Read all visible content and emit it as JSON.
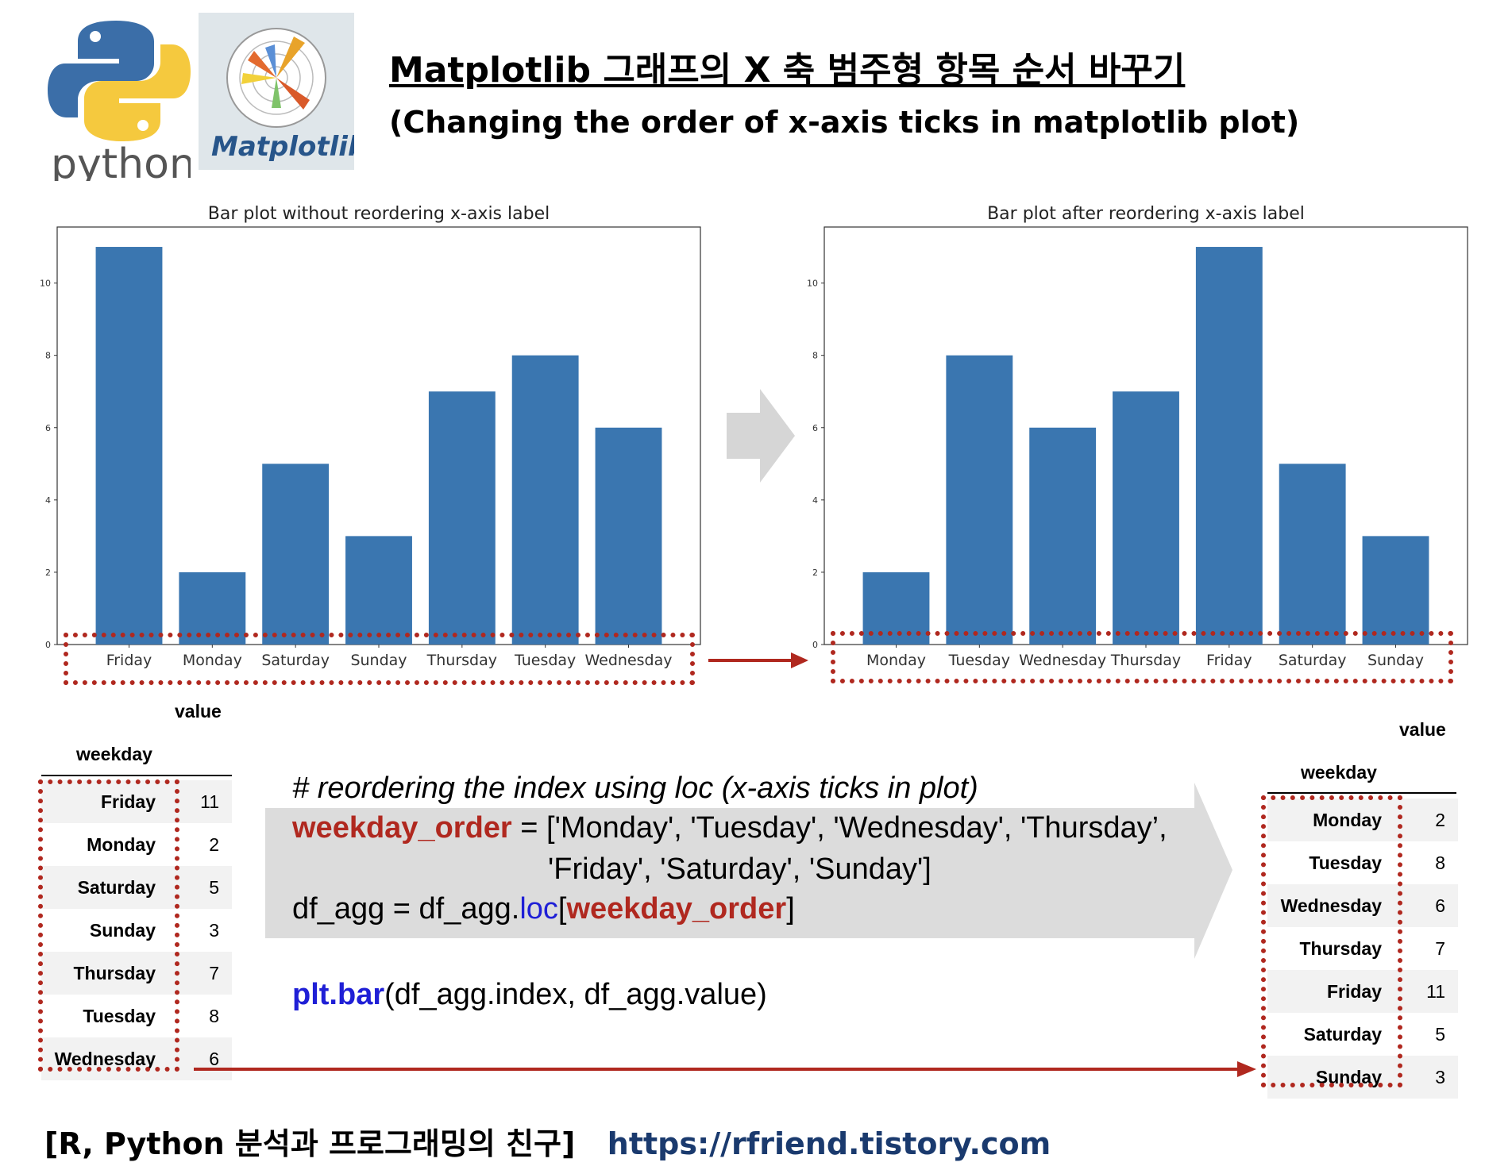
{
  "header": {
    "python_logo_text": "python",
    "mpl_logo_text": "Matplotlib",
    "title": "Matplotlib 그래프의 X 축 범주형 항목 순서 바꾸기",
    "subtitle": "(Changing the order of x-axis ticks in matplotlib plot)"
  },
  "chart_data": [
    {
      "type": "bar",
      "title": "Bar plot without reordering x-axis label",
      "categories": [
        "Friday",
        "Monday",
        "Saturday",
        "Sunday",
        "Thursday",
        "Tuesday",
        "Wednesday"
      ],
      "values": [
        11,
        2,
        5,
        3,
        7,
        8,
        6
      ],
      "ylim": [
        0,
        11.55
      ],
      "yticks": [
        0,
        2,
        4,
        6,
        8,
        10
      ],
      "color": "#3a76b0"
    },
    {
      "type": "bar",
      "title": "Bar plot after reordering x-axis label",
      "categories": [
        "Monday",
        "Tuesday",
        "Wednesday",
        "Thursday",
        "Friday",
        "Saturday",
        "Sunday"
      ],
      "values": [
        2,
        8,
        6,
        7,
        11,
        5,
        3
      ],
      "ylim": [
        0,
        11.55
      ],
      "yticks": [
        0,
        2,
        4,
        6,
        8,
        10
      ],
      "color": "#3a76b0"
    }
  ],
  "left_table": {
    "column": "value",
    "index_name": "weekday",
    "rows": [
      {
        "weekday": "Friday",
        "value": "11"
      },
      {
        "weekday": "Monday",
        "value": "2"
      },
      {
        "weekday": "Saturday",
        "value": "5"
      },
      {
        "weekday": "Sunday",
        "value": "3"
      },
      {
        "weekday": "Thursday",
        "value": "7"
      },
      {
        "weekday": "Tuesday",
        "value": "8"
      },
      {
        "weekday": "Wednesday",
        "value": "6"
      }
    ]
  },
  "right_table": {
    "column": "value",
    "index_name": "weekday",
    "rows": [
      {
        "weekday": "Monday",
        "value": "2"
      },
      {
        "weekday": "Tuesday",
        "value": "8"
      },
      {
        "weekday": "Wednesday",
        "value": "6"
      },
      {
        "weekday": "Thursday",
        "value": "7"
      },
      {
        "weekday": "Friday",
        "value": "11"
      },
      {
        "weekday": "Saturday",
        "value": "5"
      },
      {
        "weekday": "Sunday",
        "value": "3"
      }
    ]
  },
  "code": {
    "comment": "# reordering the index using loc (x-axis ticks in plot)",
    "line1_var": "weekday_order",
    "line1_rest": " = ['Monday', 'Tuesday', 'Wednesday', 'Thursday’,",
    "line2": "'Friday', 'Saturday', 'Sunday']",
    "line3_a": "df_agg = df_agg.",
    "line3_loc": "loc",
    "line3_b": "[",
    "line3_var": "weekday_order",
    "line3_c": "]",
    "line4_fn": "plt.bar",
    "line4_rest": "(df_agg.index, df_agg.value)"
  },
  "footer": {
    "label": "[R, Python 분석과 프로그래밍의 친구]",
    "url": "https://rfriend.tistory.com"
  },
  "colors": {
    "accent_red": "#b0281f",
    "code_blue": "#1f1fd6",
    "bar_blue": "#3a76b0",
    "arrow_gray": "#d6d6d6"
  }
}
